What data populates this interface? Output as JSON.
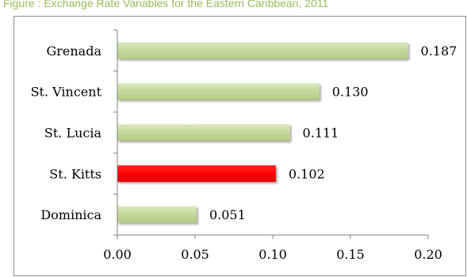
{
  "caption": "Figure  : Exchange Rate Variables for the Eastern Caribbean, 2011",
  "chart_data": {
    "type": "bar",
    "orientation": "horizontal",
    "categories": [
      "Grenada",
      "St. Vincent",
      "St. Lucia",
      "St. Kitts",
      "Dominica"
    ],
    "values": [
      0.187,
      0.13,
      0.111,
      0.102,
      0.051
    ],
    "value_labels": [
      "0.187",
      "0.130",
      "0.111",
      "0.102",
      "0.051"
    ],
    "x_ticks": [
      "0.00",
      "0.05",
      "0.10",
      "0.15",
      "0.20"
    ],
    "xlim": [
      0,
      0.2
    ],
    "grid": false,
    "legend": "none",
    "colors": {
      "default_bar": "#c4d89b",
      "highlight_bar": "#ff0000",
      "highlight_category": "St. Kitts",
      "caption_text": "#9bbb59"
    }
  }
}
